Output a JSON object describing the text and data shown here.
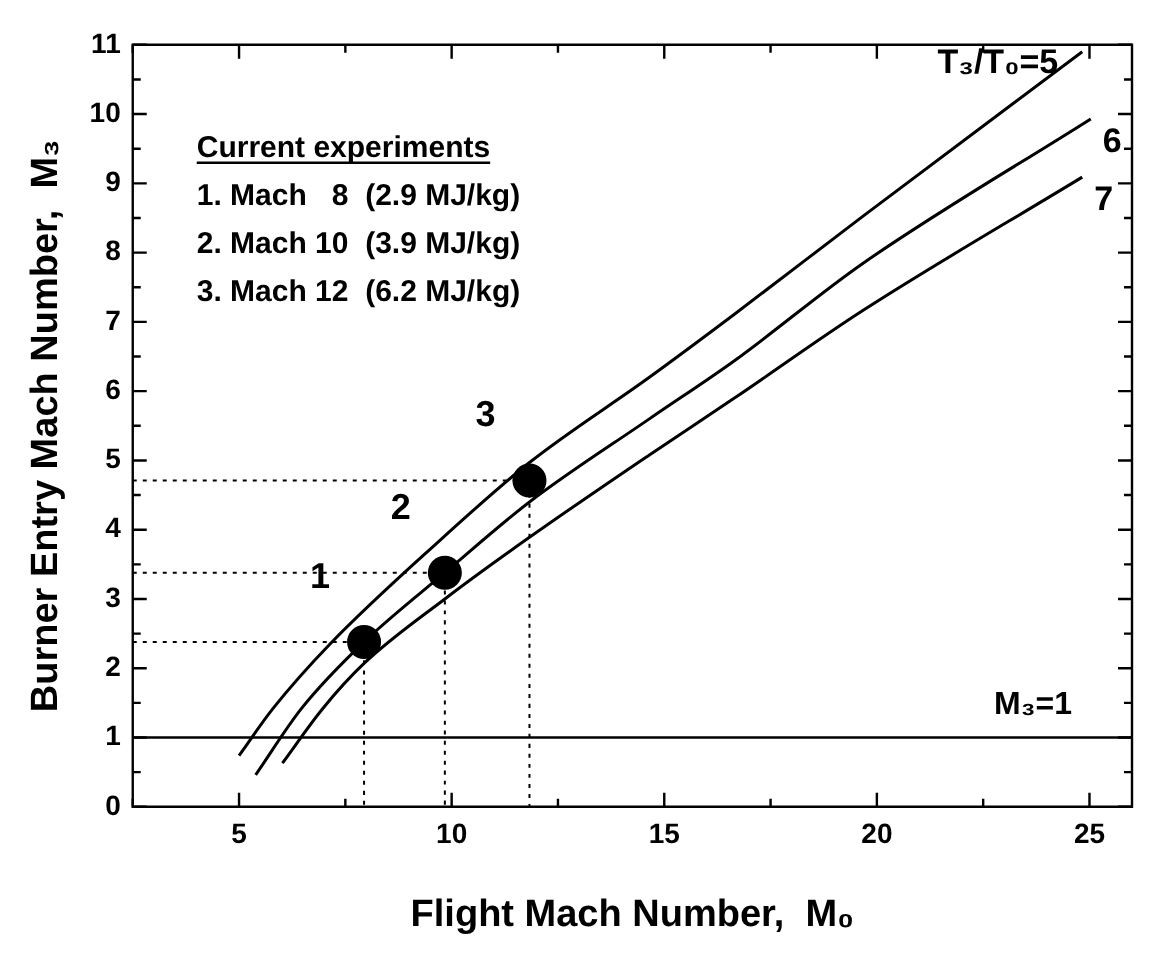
{
  "chart_data": {
    "type": "line",
    "xlabel": "Flight Mach Number,  M₀",
    "ylabel": "Burner Entry Mach Number,  M₃",
    "xlim": [
      2.5,
      26
    ],
    "ylim": [
      0,
      11
    ],
    "xticks": [
      {
        "value": 2.5,
        "label": null
      },
      5,
      {
        "value": 7.5,
        "label": null
      },
      10,
      {
        "value": 12.5,
        "label": null
      },
      15,
      {
        "value": 17.5,
        "label": null
      },
      20,
      {
        "value": 22.5,
        "label": null
      },
      25
    ],
    "yticks": [
      0,
      {
        "value": 0.5,
        "label": null
      },
      1,
      {
        "value": 1.5,
        "label": null
      },
      2,
      {
        "value": 2.5,
        "label": null
      },
      3,
      {
        "value": 3.5,
        "label": null
      },
      4,
      {
        "value": 4.5,
        "label": null
      },
      5,
      {
        "value": 5.5,
        "label": null
      },
      6,
      {
        "value": 6.5,
        "label": null
      },
      7,
      {
        "value": 7.5,
        "label": null
      },
      8,
      {
        "value": 8.5,
        "label": null
      },
      9,
      {
        "value": 9.5,
        "label": null
      },
      10,
      {
        "value": 10.5,
        "label": null
      },
      11
    ],
    "grid": false,
    "legend": "top right",
    "marker": "none",
    "line_style": "solid",
    "series": [
      {
        "name": "T₃/T₀=5",
        "color": "#000000",
        "x": [
          5.0,
          5.8,
          7.14,
          9.64,
          11.83,
          14.65,
          16.65,
          19.66,
          24.83
        ],
        "values": [
          0.74,
          1.42,
          2.35,
          3.8,
          4.97,
          6.2,
          7.11,
          8.52,
          10.9
        ]
      },
      {
        "name": "6",
        "color": "#000000",
        "x": [
          5.39,
          6.47,
          7.94,
          9.84,
          11.83,
          14.65,
          16.65,
          19.66,
          25.03
        ],
        "values": [
          0.46,
          1.42,
          2.38,
          3.38,
          4.4,
          5.6,
          6.44,
          7.84,
          9.93
        ]
      },
      {
        "type": "line",
        "line_style": "dotted",
        "color": "#000000",
        "x": [
          2.5,
          7.94,
          7.94
        ],
        "values": [
          2.38,
          2.38,
          0
        ]
      },
      {
        "type": "line",
        "line_style": "dotted",
        "color": "#000000",
        "x": [
          2.5,
          9.84,
          9.84
        ],
        "values": [
          3.38,
          3.38,
          0
        ]
      },
      {
        "type": "line",
        "line_style": "dotted",
        "color": "#000000",
        "x": [
          2.5,
          11.83,
          11.83
        ],
        "values": [
          4.71,
          4.71,
          0
        ]
      },
      {
        "name": "7",
        "color": "#000000",
        "x": [
          6.02,
          6.97,
          7.94,
          9.84,
          11.83,
          14.65,
          16.65,
          19.66,
          24.83
        ],
        "values": [
          0.63,
          1.42,
          2.07,
          3.0,
          3.89,
          5.08,
          5.9,
          7.16,
          9.09
        ]
      },
      {
        "type": "scatter",
        "marker": "circle",
        "color": "#000000",
        "x": [
          7.94,
          9.84,
          11.83
        ],
        "values": [
          2.38,
          3.38,
          4.71
        ]
      }
    ],
    "ref_lines": [
      {
        "axis": "y",
        "value": 1,
        "label": "M₃=1",
        "color": "#000000"
      }
    ],
    "annotations": [
      "Current experiments",
      "1. Mach   8  (2.9 MJ/kg)",
      "2. Mach 10  (3.9 MJ/kg)",
      "3. Mach 12  (6.2 MJ/kg)",
      {
        "text": "1",
        "x": 7.94,
        "y": 2.38
      },
      {
        "text": "2",
        "x": 9.84,
        "y": 3.38
      },
      {
        "text": "3",
        "x": 11.83,
        "y": 4.71
      }
    ]
  }
}
